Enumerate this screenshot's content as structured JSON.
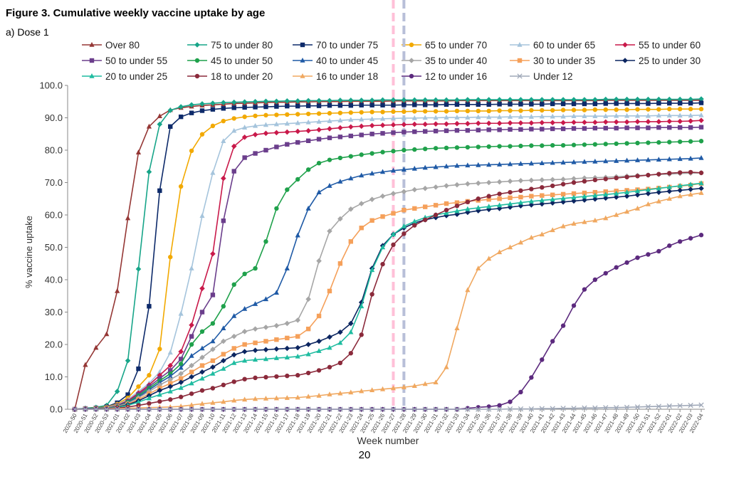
{
  "figure_title": "Figure 3. Cumulative weekly vaccine uptake by age",
  "subtitle": "a) Dose 1",
  "page_number": "20",
  "chart_data": {
    "type": "line",
    "xlabel": "Week number",
    "ylabel": "% vaccine uptake",
    "ylim": [
      0,
      100
    ],
    "yticks": [
      "0.0",
      "10.0",
      "20.0",
      "30.0",
      "40.0",
      "50.0",
      "60.0",
      "70.0",
      "80.0",
      "90.0",
      "100.0"
    ],
    "grid": false,
    "legend_position": "top",
    "reference_lines": [
      {
        "at_week": "2021-27",
        "style": "dashed",
        "color": "#ffc0d8"
      },
      {
        "at_week": "2021-28",
        "style": "dashed",
        "color": "#b8bfd8"
      }
    ],
    "categories": [
      "2020-50",
      "2020-51",
      "2020-52",
      "2020-53",
      "2021-01",
      "2021-02",
      "2021-03",
      "2021-04",
      "2021-05",
      "2021-06",
      "2021-07",
      "2021-08",
      "2021-09",
      "2021-10",
      "2021-11",
      "2021-12",
      "2021-13",
      "2021-14",
      "2021-15",
      "2021-16",
      "2021-17",
      "2021-18",
      "2021-19",
      "2021-20",
      "2021-21",
      "2021-22",
      "2021-23",
      "2021-24",
      "2021-25",
      "2021-26",
      "2021-27",
      "2021-28",
      "2021-29",
      "2021-30",
      "2021-31",
      "2021-32",
      "2021-33",
      "2021-34",
      "2021-35",
      "2021-36",
      "2021-37",
      "2021-38",
      "2021-39",
      "2021-40",
      "2021-41",
      "2021-42",
      "2021-43",
      "2021-44",
      "2021-45",
      "2021-46",
      "2021-47",
      "2021-48",
      "2021-49",
      "2021-50",
      "2021-51",
      "2021-52",
      "2022-01",
      "2022-02",
      "2022-03",
      "2022-04"
    ],
    "series": [
      {
        "name": "Over 80",
        "color": "#953735",
        "marker": "triangle",
        "values": [
          0,
          13.7,
          19.0,
          23.2,
          36.5,
          59.0,
          79.3,
          87.3,
          90.5,
          92.4,
          93.1,
          93.5,
          93.8,
          94.0,
          94.2,
          94.4,
          94.5,
          94.6,
          94.7,
          94.8,
          94.8,
          94.9,
          94.9,
          95.0,
          95.0,
          95.0,
          95.1,
          95.1,
          95.1,
          95.1,
          95.2,
          95.2,
          95.2,
          95.2,
          95.2,
          95.2,
          95.3,
          95.3,
          95.3,
          95.3,
          95.3,
          95.3,
          95.3,
          95.3,
          95.3,
          95.3,
          95.3,
          95.3,
          95.3,
          95.3,
          95.4,
          95.4,
          95.4,
          95.4,
          95.4,
          95.4,
          95.4,
          95.4,
          95.4,
          95.4
        ]
      },
      {
        "name": "75 to under 80",
        "color": "#17a589",
        "marker": "diamond",
        "values": [
          0,
          0.3,
          0.6,
          1.2,
          5.5,
          15.0,
          43.3,
          73.3,
          88.0,
          92.3,
          93.4,
          94.0,
          94.3,
          94.5,
          94.7,
          94.8,
          94.9,
          95.0,
          95.1,
          95.1,
          95.2,
          95.2,
          95.3,
          95.3,
          95.3,
          95.4,
          95.4,
          95.4,
          95.4,
          95.5,
          95.5,
          95.5,
          95.5,
          95.5,
          95.5,
          95.5,
          95.5,
          95.6,
          95.6,
          95.6,
          95.6,
          95.6,
          95.6,
          95.6,
          95.6,
          95.6,
          95.6,
          95.6,
          95.6,
          95.6,
          95.7,
          95.7,
          95.7,
          95.7,
          95.7,
          95.7,
          95.7,
          95.7,
          95.7,
          95.8
        ]
      },
      {
        "name": "70 to under 75",
        "color": "#0d2a6a",
        "marker": "square",
        "values": [
          0,
          0.2,
          0.4,
          0.8,
          2.0,
          4.5,
          12.5,
          31.8,
          67.5,
          87.3,
          90.3,
          91.5,
          92.2,
          92.6,
          92.9,
          93.1,
          93.2,
          93.3,
          93.4,
          93.5,
          93.6,
          93.6,
          93.7,
          93.7,
          93.8,
          93.8,
          93.8,
          93.9,
          93.9,
          93.9,
          93.9,
          94.0,
          94.0,
          94.0,
          94.0,
          94.1,
          94.1,
          94.1,
          94.1,
          94.1,
          94.2,
          94.2,
          94.2,
          94.2,
          94.2,
          94.3,
          94.3,
          94.3,
          94.3,
          94.3,
          94.4,
          94.4,
          94.4,
          94.4,
          94.4,
          94.5,
          94.5,
          94.5,
          94.5,
          94.6
        ]
      },
      {
        "name": "65 to under 70",
        "color": "#f2a900",
        "marker": "circle",
        "values": [
          0,
          0.2,
          0.4,
          0.7,
          1.6,
          3.5,
          7.0,
          10.5,
          18.6,
          47.0,
          68.8,
          79.8,
          84.9,
          87.5,
          89.0,
          89.8,
          90.3,
          90.6,
          90.8,
          90.9,
          91.0,
          91.1,
          91.2,
          91.3,
          91.4,
          91.5,
          91.6,
          91.7,
          91.8,
          91.8,
          91.9,
          91.9,
          92.0,
          92.0,
          92.0,
          92.0,
          92.1,
          92.1,
          92.1,
          92.1,
          92.2,
          92.2,
          92.2,
          92.3,
          92.3,
          92.3,
          92.4,
          92.4,
          92.4,
          92.5,
          92.5,
          92.5,
          92.5,
          92.6,
          92.6,
          92.6,
          92.7,
          92.7,
          92.7,
          92.7
        ]
      },
      {
        "name": "60 to under 65",
        "color": "#a5c4dc",
        "marker": "triangle",
        "values": [
          0,
          0.2,
          0.3,
          0.6,
          1.4,
          3.0,
          5.5,
          8.0,
          11.5,
          17.5,
          29.5,
          43.5,
          59.7,
          73.0,
          82.8,
          86.0,
          87.0,
          87.5,
          87.8,
          88.0,
          88.2,
          88.4,
          88.6,
          88.8,
          89.0,
          89.2,
          89.4,
          89.5,
          89.6,
          89.7,
          89.8,
          89.9,
          89.9,
          90.0,
          90.0,
          90.1,
          90.1,
          90.1,
          90.2,
          90.2,
          90.2,
          90.3,
          90.3,
          90.3,
          90.4,
          90.4,
          90.4,
          90.5,
          90.5,
          90.5,
          90.5,
          90.6,
          90.6,
          90.6,
          90.6,
          90.7,
          90.7,
          90.7,
          90.7,
          90.8
        ]
      },
      {
        "name": "55 to under 60",
        "color": "#c9194a",
        "marker": "diamond",
        "values": [
          0,
          0.2,
          0.3,
          0.5,
          1.2,
          2.6,
          5.0,
          7.5,
          10.5,
          13.5,
          17.8,
          26.0,
          37.3,
          48.0,
          71.3,
          81.2,
          84.0,
          84.8,
          85.2,
          85.4,
          85.6,
          85.8,
          86.0,
          86.3,
          86.6,
          86.9,
          87.2,
          87.4,
          87.6,
          87.7,
          87.8,
          87.9,
          88.0,
          88.0,
          88.1,
          88.1,
          88.2,
          88.2,
          88.3,
          88.3,
          88.3,
          88.4,
          88.4,
          88.4,
          88.5,
          88.5,
          88.5,
          88.6,
          88.6,
          88.6,
          88.7,
          88.7,
          88.7,
          88.8,
          88.8,
          88.8,
          88.9,
          88.9,
          89.0,
          89.2
        ]
      },
      {
        "name": "50 to under 55",
        "color": "#6b3e8c",
        "marker": "square",
        "values": [
          0,
          0.2,
          0.3,
          0.5,
          1.1,
          2.4,
          4.6,
          7.0,
          9.5,
          12.0,
          15.5,
          22.5,
          30.0,
          35.3,
          58.2,
          73.5,
          77.7,
          79.0,
          80.0,
          81.0,
          81.8,
          82.4,
          82.9,
          83.4,
          83.8,
          84.1,
          84.4,
          84.7,
          85.0,
          85.2,
          85.4,
          85.6,
          85.7,
          85.8,
          85.9,
          86.0,
          86.1,
          86.1,
          86.2,
          86.3,
          86.3,
          86.4,
          86.4,
          86.5,
          86.5,
          86.6,
          86.6,
          86.7,
          86.7,
          86.8,
          86.8,
          86.8,
          86.9,
          86.9,
          86.9,
          87.0,
          87.0,
          87.0,
          87.0,
          87.1
        ]
      },
      {
        "name": "45 to under 50",
        "color": "#1fa14b",
        "marker": "circle",
        "values": [
          0,
          0.2,
          0.3,
          0.5,
          1.0,
          2.2,
          4.2,
          6.5,
          8.8,
          11.0,
          14.0,
          20.0,
          24.0,
          26.5,
          31.8,
          38.5,
          41.8,
          43.5,
          51.8,
          62.0,
          67.8,
          71.0,
          74.0,
          76.0,
          77.0,
          77.6,
          78.1,
          78.6,
          79.0,
          79.4,
          79.7,
          80.0,
          80.2,
          80.4,
          80.6,
          80.7,
          80.8,
          80.9,
          81.0,
          81.1,
          81.2,
          81.2,
          81.3,
          81.4,
          81.4,
          81.5,
          81.5,
          81.6,
          81.7,
          81.8,
          81.9,
          82.0,
          82.1,
          82.2,
          82.3,
          82.4,
          82.5,
          82.6,
          82.7,
          82.8
        ]
      },
      {
        "name": "40 to under 45",
        "color": "#1f5aa6",
        "marker": "triangle",
        "values": [
          0,
          0.2,
          0.3,
          0.5,
          1.0,
          2.0,
          3.8,
          6.0,
          8.2,
          10.2,
          12.8,
          16.5,
          18.8,
          21.0,
          25.0,
          28.8,
          31.0,
          32.5,
          34.0,
          36.0,
          43.5,
          53.7,
          62.0,
          67.0,
          69.0,
          70.3,
          71.3,
          72.2,
          72.8,
          73.3,
          73.7,
          74.0,
          74.3,
          74.6,
          74.8,
          75.0,
          75.2,
          75.3,
          75.4,
          75.5,
          75.6,
          75.7,
          75.8,
          75.9,
          76.0,
          76.1,
          76.2,
          76.3,
          76.4,
          76.5,
          76.6,
          76.7,
          76.8,
          76.9,
          77.0,
          77.1,
          77.2,
          77.3,
          77.4,
          77.6
        ]
      },
      {
        "name": "35 to under 40",
        "color": "#a6a6a6",
        "marker": "diamond",
        "values": [
          0,
          0.1,
          0.2,
          0.4,
          0.9,
          1.8,
          3.5,
          5.5,
          7.5,
          9.2,
          11.0,
          13.5,
          16.0,
          18.5,
          21.0,
          22.5,
          24.0,
          24.8,
          25.3,
          25.8,
          26.5,
          27.5,
          34.0,
          45.8,
          55.0,
          58.8,
          61.8,
          63.5,
          64.8,
          65.8,
          66.6,
          67.2,
          67.8,
          68.2,
          68.6,
          69.0,
          69.3,
          69.6,
          69.8,
          70.0,
          70.2,
          70.4,
          70.6,
          70.7,
          70.8,
          70.9,
          71.0,
          71.2,
          71.4,
          71.5,
          71.6,
          71.8,
          72.0,
          72.2,
          72.3,
          72.5,
          72.6,
          72.8,
          72.9,
          73.0
        ]
      },
      {
        "name": "30 to under 35",
        "color": "#f5a05a",
        "marker": "square",
        "values": [
          0,
          0.1,
          0.2,
          0.4,
          0.8,
          1.6,
          3.0,
          4.8,
          6.5,
          8.0,
          9.5,
          11.5,
          13.5,
          15.0,
          17.0,
          18.8,
          20.0,
          20.5,
          21.0,
          21.5,
          22.0,
          22.5,
          24.8,
          28.8,
          36.5,
          45.0,
          51.8,
          56.0,
          58.3,
          59.5,
          60.5,
          61.5,
          62.0,
          62.5,
          63.0,
          63.5,
          63.8,
          64.2,
          64.5,
          64.8,
          65.0,
          65.3,
          65.5,
          65.8,
          66.0,
          66.2,
          66.4,
          66.6,
          66.8,
          67.0,
          67.2,
          67.4,
          67.6,
          67.8,
          68.0,
          68.3,
          68.6,
          68.9,
          69.2,
          69.7
        ]
      },
      {
        "name": "25 to under 30",
        "color": "#0b2560",
        "marker": "diamond",
        "values": [
          0,
          0.1,
          0.2,
          0.3,
          0.7,
          1.4,
          2.6,
          4.2,
          5.8,
          7.0,
          8.3,
          10.0,
          11.5,
          13.0,
          15.0,
          16.8,
          17.8,
          18.2,
          18.4,
          18.6,
          18.8,
          19.0,
          20.0,
          21.0,
          22.3,
          23.8,
          26.5,
          33.0,
          43.5,
          50.5,
          54.0,
          56.0,
          57.5,
          58.5,
          59.2,
          59.8,
          60.2,
          60.8,
          61.3,
          61.7,
          62.0,
          62.4,
          62.8,
          63.1,
          63.4,
          63.7,
          64.0,
          64.3,
          64.6,
          64.9,
          65.2,
          65.5,
          65.8,
          66.2,
          66.6,
          67.0,
          67.3,
          67.6,
          67.9,
          68.2
        ]
      },
      {
        "name": "20 to under 25",
        "color": "#1fbca0",
        "marker": "triangle",
        "values": [
          0,
          0.1,
          0.2,
          0.3,
          0.6,
          1.2,
          2.2,
          3.4,
          4.5,
          5.5,
          6.6,
          8.0,
          9.5,
          11.0,
          12.5,
          14.3,
          15.0,
          15.3,
          15.5,
          15.8,
          16.0,
          16.3,
          17.0,
          18.0,
          19.0,
          20.5,
          23.8,
          31.8,
          43.0,
          50.0,
          54.0,
          56.5,
          58.0,
          59.2,
          60.0,
          60.6,
          61.2,
          61.8,
          62.2,
          62.6,
          63.0,
          63.4,
          63.8,
          64.2,
          64.5,
          64.8,
          65.1,
          65.4,
          65.7,
          66.0,
          66.3,
          66.6,
          67.0,
          67.4,
          67.8,
          68.2,
          68.6,
          69.0,
          69.4,
          69.8
        ]
      },
      {
        "name": "18 to under 20",
        "color": "#8b2a3b",
        "marker": "circle",
        "values": [
          0,
          0.1,
          0.1,
          0.2,
          0.4,
          0.7,
          1.2,
          1.8,
          2.4,
          3.0,
          3.8,
          4.8,
          5.8,
          6.5,
          7.5,
          8.5,
          9.3,
          9.7,
          9.9,
          10.1,
          10.3,
          10.5,
          11.2,
          12.0,
          13.0,
          14.3,
          17.3,
          23.0,
          35.5,
          44.8,
          50.8,
          54.2,
          56.8,
          58.5,
          60.0,
          61.5,
          62.8,
          64.0,
          65.0,
          65.8,
          66.5,
          67.0,
          67.5,
          68.0,
          68.5,
          69.0,
          69.5,
          70.0,
          70.4,
          70.8,
          71.1,
          71.4,
          71.7,
          72.0,
          72.3,
          72.6,
          72.9,
          73.1,
          73.2,
          73.0
        ]
      },
      {
        "name": "16 to under 18",
        "color": "#f0a860",
        "marker": "triangle",
        "values": [
          0,
          0.0,
          0.0,
          0.1,
          0.2,
          0.3,
          0.4,
          0.5,
          0.6,
          0.7,
          0.9,
          1.3,
          1.7,
          2.0,
          2.3,
          2.7,
          3.0,
          3.2,
          3.3,
          3.4,
          3.5,
          3.6,
          3.9,
          4.2,
          4.6,
          4.9,
          5.2,
          5.6,
          5.9,
          6.2,
          6.5,
          6.8,
          7.2,
          7.8,
          8.3,
          13.0,
          25.0,
          36.8,
          43.5,
          46.5,
          48.5,
          50.0,
          51.5,
          53.0,
          54.0,
          55.3,
          56.5,
          57.3,
          57.8,
          58.3,
          59.0,
          60.0,
          61.0,
          62.0,
          63.3,
          64.2,
          65.0,
          65.8,
          66.3,
          66.8
        ]
      },
      {
        "name": "12 to under 16",
        "color": "#5c2a7e",
        "marker": "circle",
        "values": [
          0,
          0,
          0,
          0,
          0,
          0,
          0,
          0,
          0,
          0,
          0,
          0,
          0,
          0,
          0,
          0,
          0,
          0,
          0,
          0,
          0,
          0,
          0,
          0,
          0,
          0,
          0,
          0,
          0,
          0,
          0,
          0,
          0,
          0,
          0,
          0,
          0,
          0.3,
          0.6,
          0.8,
          1.2,
          2.3,
          5.3,
          9.8,
          15.3,
          21.0,
          25.8,
          32.0,
          37.0,
          40.0,
          42.0,
          43.8,
          45.3,
          46.8,
          47.8,
          48.8,
          50.5,
          51.8,
          52.8,
          53.8
        ]
      },
      {
        "name": "Under 12",
        "color": "#9fa8b8",
        "marker": "cross",
        "values": [
          0,
          0,
          0,
          0,
          0,
          0,
          0,
          0,
          0,
          0,
          0,
          0,
          0,
          0,
          0,
          0,
          0,
          0,
          0,
          0,
          0,
          0,
          0,
          0,
          0,
          0,
          0,
          0,
          0,
          0,
          0,
          0,
          0,
          0,
          0,
          0,
          0,
          0,
          0,
          0,
          0,
          0.1,
          0.1,
          0.1,
          0.2,
          0.2,
          0.3,
          0.3,
          0.4,
          0.4,
          0.5,
          0.5,
          0.6,
          0.7,
          0.8,
          0.9,
          1.0,
          1.1,
          1.2,
          1.3
        ]
      }
    ]
  }
}
